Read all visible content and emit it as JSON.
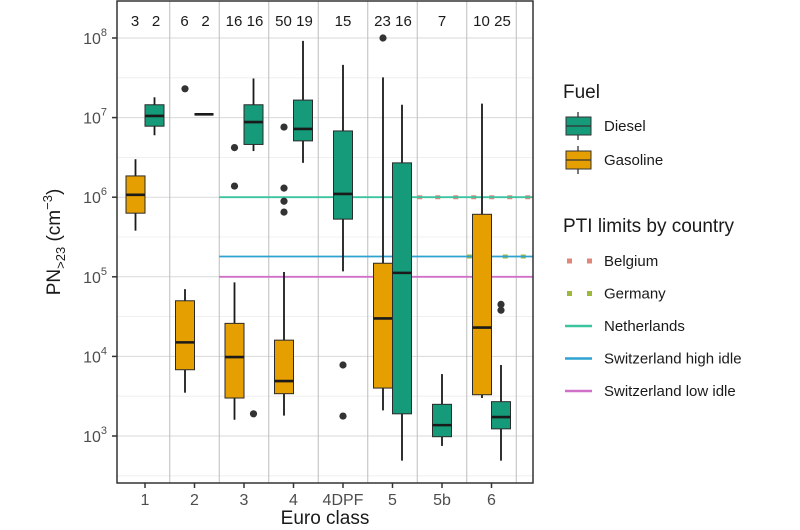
{
  "chart_data": {
    "type": "box",
    "title": "",
    "xlabel": "Euro class",
    "ylabel_main": "PN",
    "ylabel_sub": ">23",
    "ylabel_unit_open": " (cm",
    "ylabel_unit_sup": "−3",
    "ylabel_unit_close": ")",
    "yscale": "log10",
    "ylim_log10": [
      2.5,
      8.48
    ],
    "yticks": [
      {
        "exp": "8",
        "value": 100000000
      },
      {
        "exp": "7",
        "value": 10000000
      },
      {
        "exp": "6",
        "value": 1000000
      },
      {
        "exp": "5",
        "value": 100000
      },
      {
        "exp": "4",
        "value": 10000
      },
      {
        "exp": "3",
        "value": 1000
      }
    ],
    "ytick_base": "10",
    "grid": true,
    "categories": [
      "1",
      "2",
      "3",
      "4",
      "4DPF",
      "5",
      "5b",
      "6"
    ],
    "sample_counts": [
      {
        "category": "1",
        "labels": [
          "3",
          "2"
        ]
      },
      {
        "category": "2",
        "labels": [
          "6",
          "2"
        ]
      },
      {
        "category": "3",
        "labels": [
          "16",
          "16"
        ]
      },
      {
        "category": "4",
        "labels": [
          "50",
          "19"
        ]
      },
      {
        "category": "4DPF",
        "labels": [
          "15"
        ]
      },
      {
        "category": "5",
        "labels": [
          "23",
          "16"
        ]
      },
      {
        "category": "5b",
        "labels": [
          "7"
        ]
      },
      {
        "category": "6",
        "labels": [
          "10",
          "25"
        ]
      }
    ],
    "series": [
      {
        "name": "Gasoline",
        "color": "#E69F00",
        "boxes": [
          {
            "category": "1",
            "whisker_low": 380000,
            "q1": 630000,
            "median": 1070000,
            "q3": 1850000,
            "whisker_high": 3000000,
            "outliers": []
          },
          {
            "category": "2",
            "whisker_low": 3500,
            "q1": 6800,
            "median": 15000,
            "q3": 50000,
            "whisker_high": 70000,
            "outliers": [
              23000000
            ]
          },
          {
            "category": "3",
            "whisker_low": 1600,
            "q1": 3000,
            "median": 9800,
            "q3": 26000,
            "whisker_high": 85000,
            "outliers": [
              4200000,
              1380000
            ]
          },
          {
            "category": "4",
            "whisker_low": 1800,
            "q1": 3400,
            "median": 4900,
            "q3": 16000,
            "whisker_high": 115000,
            "outliers": [
              7600000,
              1300000,
              890000,
              650000
            ]
          },
          {
            "category": "5",
            "whisker_low": 2100,
            "q1": 4000,
            "median": 30000,
            "q3": 148000,
            "whisker_high": 32000000,
            "outliers": [
              100000000
            ]
          },
          {
            "category": "6",
            "whisker_low": 3000,
            "q1": 3300,
            "median": 23000,
            "q3": 610000,
            "whisker_high": 15000000,
            "outliers": []
          }
        ]
      },
      {
        "name": "Diesel",
        "color": "#159B79",
        "boxes": [
          {
            "category": "1",
            "whisker_low": 6000000,
            "q1": 7800000,
            "median": 10500000,
            "q3": 14500000,
            "whisker_high": 18000000,
            "outliers": []
          },
          {
            "category": "2",
            "whisker_low": 11000000,
            "q1": 11000000,
            "median": 11000000,
            "q3": 11000000,
            "whisker_high": 11000000,
            "outliers": []
          },
          {
            "category": "3",
            "whisker_low": 3800000,
            "q1": 4600000,
            "median": 8800000,
            "q3": 14500000,
            "whisker_high": 31000000,
            "outliers": [
              1900
            ]
          },
          {
            "category": "4",
            "whisker_low": 2700000,
            "q1": 5100000,
            "median": 7200000,
            "q3": 16600000,
            "whisker_high": 92000000,
            "outliers": []
          },
          {
            "category": "4DPF",
            "whisker_low": 117000,
            "q1": 530000,
            "median": 1100000,
            "q3": 6800000,
            "whisker_high": 46000000,
            "outliers": [
              7800,
              1780
            ]
          },
          {
            "category": "5",
            "whisker_low": 490,
            "q1": 1900,
            "median": 112000,
            "q3": 2700000,
            "whisker_high": 14500000,
            "outliers": []
          },
          {
            "category": "5b",
            "whisker_low": 750,
            "q1": 980,
            "median": 1370,
            "q3": 2500,
            "whisker_high": 6000,
            "outliers": []
          },
          {
            "category": "6",
            "whisker_low": 490,
            "q1": 1230,
            "median": 1730,
            "q3": 2700,
            "whisker_high": 7800,
            "outliers": [
              45000,
              38000
            ]
          }
        ]
      }
    ],
    "reference_lines": [
      {
        "name": "Belgium",
        "value": 1000000,
        "color": "#E0877A",
        "style": "dotted",
        "from_category_boundary": "5|5b"
      },
      {
        "name": "Germany",
        "value": 180000,
        "color": "#9DB83A",
        "style": "dotted",
        "from_category_boundary": "5b|6"
      },
      {
        "name": "Netherlands",
        "value": 1000000,
        "color": "#3CC4A0",
        "style": "solid",
        "from_category_boundary": "2|3"
      },
      {
        "name": "Switzerland high idle",
        "value": 180000,
        "color": "#2FA3D0",
        "style": "solid",
        "from_category_boundary": "2|3"
      },
      {
        "name": "Switzerland low idle",
        "value": 100000,
        "color": "#D070C8",
        "style": "solid",
        "from_category_boundary": "2|3"
      }
    ],
    "legend": {
      "position": "right",
      "fuel_title": "Fuel",
      "fuel_items": [
        {
          "label": "Diesel",
          "color": "#159B79"
        },
        {
          "label": "Gasoline",
          "color": "#E69F00"
        }
      ],
      "pti_title": "PTI limits by country",
      "pti_items": [
        {
          "label": "Belgium",
          "color": "#E0877A",
          "style": "dotted"
        },
        {
          "label": "Germany",
          "color": "#9DB83A",
          "style": "dotted"
        },
        {
          "label": "Netherlands",
          "color": "#3CC4A0",
          "style": "solid"
        },
        {
          "label": "Switzerland high idle",
          "color": "#2FA3D0",
          "style": "solid"
        },
        {
          "label": "Switzerland low idle",
          "color": "#D070C8",
          "style": "solid"
        }
      ]
    }
  }
}
